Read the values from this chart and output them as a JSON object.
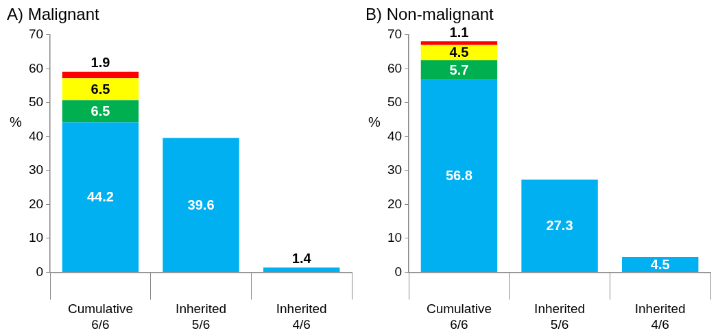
{
  "chart_data": [
    {
      "type": "bar",
      "title": "A) Malignant",
      "ylabel": "%",
      "categories": [
        "Cumulative 6/6",
        "Inherited 5/6",
        "Inherited 4/6"
      ],
      "stacked": true,
      "data_labels": true,
      "grid": false,
      "legend": false,
      "ylim": [
        0,
        70
      ],
      "yticks": [
        0,
        10,
        20,
        30,
        40,
        50,
        60,
        70
      ],
      "series": [
        {
          "color": "#00b0f0",
          "values": [
            44.2,
            39.6,
            1.4
          ]
        },
        {
          "color": "#00b050",
          "values": [
            6.5,
            null,
            null
          ]
        },
        {
          "color": "#ffff00",
          "values": [
            6.5,
            null,
            null
          ]
        },
        {
          "color": "#ff0000",
          "values": [
            1.9,
            null,
            null
          ]
        }
      ]
    },
    {
      "type": "bar",
      "title": "B) Non-malignant",
      "ylabel": "%",
      "categories": [
        "Cumulative 6/6",
        "Inherited 5/6",
        "Inherited 4/6"
      ],
      "stacked": true,
      "data_labels": true,
      "grid": false,
      "legend": false,
      "ylim": [
        0,
        70
      ],
      "yticks": [
        0,
        10,
        20,
        30,
        40,
        50,
        60,
        70
      ],
      "series": [
        {
          "color": "#00b0f0",
          "values": [
            56.8,
            27.3,
            4.5
          ]
        },
        {
          "color": "#00b050",
          "values": [
            5.7,
            null,
            null
          ]
        },
        {
          "color": "#ffff00",
          "values": [
            4.5,
            null,
            null
          ]
        },
        {
          "color": "#ff0000",
          "values": [
            1.1,
            null,
            null
          ]
        }
      ]
    }
  ]
}
